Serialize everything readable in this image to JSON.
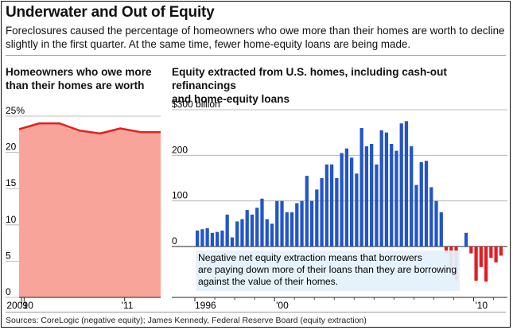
{
  "title": "Underwater and Out of Equity",
  "subtitle": "Foreclosures caused the percentage of homeowners who owe more than their homes are worth to decline slightly in the first quarter. At the same time, fewer home-equity loans are being made.",
  "source": "Sources: CoreLogic (negative equity); James Kennedy, Federal Reserve Board (equity extraction)",
  "left_panel": {
    "title_line1": "Homeowners who owe more",
    "title_line2": "than their homes are worth"
  },
  "right_panel": {
    "title_line1": "Equity extracted from U.S. homes, including cash-out refinancings",
    "title_line2": "and home-equity loans",
    "annotation_line1": "Negative net equity extraction means that borrowers",
    "annotation_line2": "are paying down more of their loans than they are borrowing",
    "annotation_line3": "against the value of their homes."
  },
  "colors": {
    "area_fill": "#f9a49b",
    "area_line": "#e3201e",
    "bar_positive": "#2355c8",
    "bar_negative": "#e21d24",
    "annotation_bg": "#e4f1fb",
    "grid": "#aaaaaa"
  },
  "chart_data": [
    {
      "type": "area",
      "title": "Homeowners who owe more than their homes are worth",
      "x": [
        "2009 Q3",
        "2009 Q4",
        "2010 Q1",
        "2010 Q2",
        "2010 Q3",
        "2010 Q4",
        "2011 Q1",
        "2011 Q2"
      ],
      "values": [
        23.2,
        24.0,
        24.0,
        23.0,
        22.6,
        23.3,
        22.8,
        22.8
      ],
      "ylim": [
        0,
        25
      ],
      "yticks": [
        "25%",
        "20",
        "15",
        "10",
        "5",
        "0"
      ],
      "ytick_values": [
        25,
        20,
        15,
        10,
        5,
        0
      ],
      "xtick_labels": [
        "2009",
        "'10",
        "'11"
      ],
      "xtick_positions": [
        0.12,
        0.25,
        5.22
      ],
      "grid": true
    },
    {
      "type": "bar",
      "title": "Equity extracted from U.S. homes, including cash-out refinancings and home-equity loans",
      "unit": "billion",
      "x_start": "1996 Q1",
      "frequency": "quarterly",
      "values": [
        35,
        38,
        40,
        30,
        32,
        35,
        70,
        20,
        55,
        60,
        80,
        70,
        85,
        105,
        60,
        50,
        100,
        100,
        75,
        75,
        95,
        100,
        155,
        100,
        125,
        150,
        180,
        180,
        150,
        205,
        215,
        195,
        160,
        260,
        220,
        225,
        180,
        255,
        250,
        225,
        210,
        270,
        275,
        220,
        135,
        185,
        188,
        130,
        100,
        75,
        -15,
        -50,
        -75,
        0,
        30,
        -15,
        -75,
        -45,
        -77,
        -25,
        -35,
        -20
      ],
      "ylim": [
        -80,
        300
      ],
      "yticks": [
        "$300 billion",
        "200",
        "100",
        "0"
      ],
      "ytick_values": [
        300,
        200,
        100,
        0
      ],
      "xtick_labels": [
        "1996",
        "'00",
        "'10"
      ],
      "xtick_positions": [
        0,
        16,
        56
      ],
      "grid": true
    }
  ]
}
